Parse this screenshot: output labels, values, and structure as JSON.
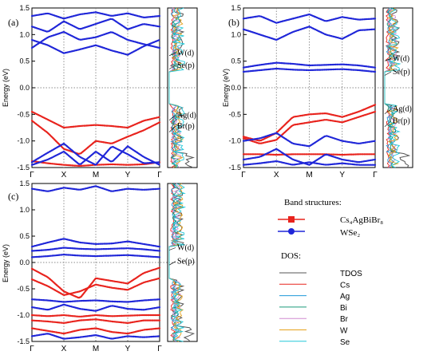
{
  "chart_data": [
    {
      "panel_label": "(a)",
      "type": "line",
      "ylabel": "Energy (eV)",
      "ylim": [
        -1.5,
        1.5
      ],
      "yticks": [
        "1.5",
        "1.0",
        "0.5",
        "0.0",
        "-0.5",
        "-1.0",
        "-1.5"
      ],
      "kpoints": [
        "Γ",
        "X",
        "M",
        "Y",
        "Γ"
      ],
      "series": [
        {
          "name": "Cs4AgBiBr8",
          "color": "#e8231d",
          "bands": [
            [
              -0.45,
              -0.6,
              -0.75,
              -0.72,
              -0.7,
              -0.72,
              -0.75,
              -0.62,
              -0.55
            ],
            [
              -0.62,
              -0.85,
              -1.15,
              -1.25,
              -1.0,
              -1.05,
              -0.92,
              -0.8,
              -0.65
            ],
            [
              -1.38,
              -1.42,
              -1.45,
              -1.47,
              -1.45,
              -1.44,
              -1.45,
              -1.44,
              -1.4
            ]
          ]
        },
        {
          "name": "WSe2",
          "color": "#1f26d8",
          "bands": [
            [
              0.9,
              0.8,
              0.65,
              0.72,
              0.8,
              0.7,
              0.62,
              0.78,
              0.9
            ],
            [
              0.75,
              0.95,
              1.05,
              0.9,
              0.95,
              1.05,
              0.9,
              0.82,
              0.75
            ],
            [
              1.15,
              1.05,
              1.25,
              1.1,
              1.2,
              1.3,
              1.1,
              1.2,
              1.15
            ],
            [
              1.35,
              1.4,
              1.3,
              1.38,
              1.42,
              1.35,
              1.4,
              1.32,
              1.35
            ],
            [
              -1.4,
              -1.22,
              -1.05,
              -1.3,
              -1.45,
              -1.1,
              -1.25,
              -1.42,
              -1.4
            ],
            [
              -1.45,
              -1.35,
              -1.2,
              -1.45,
              -1.2,
              -1.4,
              -1.1,
              -1.3,
              -1.45
            ]
          ]
        }
      ],
      "dos_labels": [
        {
          "text": "W(d)",
          "e": 0.65
        },
        {
          "text": "Se(p)",
          "e": 0.42
        },
        {
          "text": "Ag(d)",
          "e": -0.52
        },
        {
          "text": "Br(p)",
          "e": -0.72
        }
      ]
    },
    {
      "panel_label": "(b)",
      "type": "line",
      "ylabel": "Energy (eV)",
      "ylim": [
        -1.5,
        1.5
      ],
      "yticks": [
        "1.5",
        "1.0",
        "0.5",
        "0.0",
        "-0.5",
        "-1.0",
        "-1.5"
      ],
      "kpoints": [
        "Γ",
        "X",
        "M",
        "Y",
        "Γ"
      ],
      "series": [
        {
          "name": "Cs4AgBiBr8",
          "color": "#e8231d",
          "bands": [
            [
              -0.92,
              -1.0,
              -0.85,
              -0.55,
              -0.5,
              -0.48,
              -0.55,
              -0.45,
              -0.32
            ],
            [
              -0.95,
              -1.05,
              -0.98,
              -0.7,
              -0.65,
              -0.6,
              -0.65,
              -0.55,
              -0.45
            ],
            [
              -1.25,
              -1.25,
              -1.26,
              -1.25,
              -1.25,
              -1.25,
              -1.26,
              -1.25,
              -1.25
            ]
          ]
        },
        {
          "name": "WSe2",
          "color": "#1f26d8",
          "bands": [
            [
              0.38,
              0.43,
              0.47,
              0.45,
              0.42,
              0.43,
              0.44,
              0.42,
              0.38
            ],
            [
              0.3,
              0.33,
              0.36,
              0.34,
              0.33,
              0.34,
              0.35,
              0.33,
              0.3
            ],
            [
              1.1,
              1.0,
              0.9,
              1.05,
              1.15,
              1.0,
              0.92,
              1.08,
              1.1
            ],
            [
              1.3,
              1.35,
              1.22,
              1.3,
              1.38,
              1.25,
              1.33,
              1.28,
              1.3
            ],
            [
              -1.0,
              -0.95,
              -0.85,
              -1.05,
              -1.1,
              -0.9,
              -1.0,
              -1.05,
              -1.0
            ],
            [
              -1.35,
              -1.3,
              -1.15,
              -1.35,
              -1.45,
              -1.25,
              -1.35,
              -1.4,
              -1.35
            ],
            [
              -1.45,
              -1.42,
              -1.38,
              -1.45,
              -1.4,
              -1.45,
              -1.42,
              -1.45,
              -1.45
            ]
          ]
        }
      ],
      "dos_labels": [
        {
          "text": "W(d)",
          "e": 0.55
        },
        {
          "text": "Se(p)",
          "e": 0.3
        },
        {
          "text": "Ag(d)",
          "e": -0.4
        },
        {
          "text": "Br(p)",
          "e": -0.62
        }
      ]
    },
    {
      "panel_label": "(c)",
      "type": "line",
      "ylabel": "Energy (eV)",
      "ylim": [
        -1.5,
        1.5
      ],
      "yticks": [
        "1.5",
        "1.0",
        "0.5",
        "0.0",
        "-0.5",
        "-1.0",
        "-1.5"
      ],
      "kpoints": [
        "Γ",
        "X",
        "M",
        "Y",
        "Γ"
      ],
      "series": [
        {
          "name": "Cs4AgBiBr8",
          "color": "#e8231d",
          "bands": [
            [
              -0.12,
              -0.28,
              -0.55,
              -0.68,
              -0.3,
              -0.35,
              -0.4,
              -0.2,
              -0.1
            ],
            [
              -0.32,
              -0.45,
              -0.62,
              -0.55,
              -0.42,
              -0.48,
              -0.52,
              -0.38,
              -0.3
            ],
            [
              -1.0,
              -1.02,
              -1.0,
              -1.03,
              -1.0,
              -1.02,
              -1.01,
              -1.0,
              -1.0
            ],
            [
              -1.1,
              -1.12,
              -1.15,
              -1.1,
              -1.08,
              -1.12,
              -1.15,
              -1.1,
              -1.1
            ],
            [
              -1.25,
              -1.3,
              -1.35,
              -1.28,
              -1.25,
              -1.32,
              -1.35,
              -1.28,
              -1.25
            ]
          ]
        },
        {
          "name": "WSe2",
          "color": "#1f26d8",
          "bands": [
            [
              0.3,
              0.38,
              0.45,
              0.38,
              0.35,
              0.36,
              0.4,
              0.35,
              0.3
            ],
            [
              0.22,
              0.24,
              0.28,
              0.26,
              0.25,
              0.26,
              0.27,
              0.25,
              0.22
            ],
            [
              0.1,
              0.12,
              0.15,
              0.13,
              0.12,
              0.13,
              0.14,
              0.12,
              0.1
            ],
            [
              1.4,
              1.35,
              1.42,
              1.38,
              1.45,
              1.35,
              1.4,
              1.38,
              1.4
            ],
            [
              -0.7,
              -0.72,
              -0.75,
              -0.73,
              -0.72,
              -0.74,
              -0.75,
              -0.72,
              -0.7
            ],
            [
              -0.85,
              -0.9,
              -0.8,
              -0.88,
              -0.92,
              -0.82,
              -0.88,
              -0.9,
              -0.85
            ],
            [
              -1.4,
              -1.35,
              -1.45,
              -1.42,
              -1.38,
              -1.45,
              -1.4,
              -1.42,
              -1.4
            ]
          ]
        }
      ],
      "dos_labels": [
        {
          "text": "W(d)",
          "e": 0.28
        },
        {
          "text": "Se(p)",
          "e": 0.02
        }
      ]
    }
  ],
  "legend": {
    "band_title": "Band structures:",
    "band_items": [
      {
        "label": "Cs₄AgBiBr₈",
        "color": "#e8231d",
        "marker": "square"
      },
      {
        "label": "WSe₂",
        "color": "#1f26d8",
        "marker": "circle"
      }
    ],
    "dos_title": "DOS:",
    "dos_items": [
      {
        "label": "TDOS",
        "color": "#555555"
      },
      {
        "label": "Cs",
        "color": "#e8231d"
      },
      {
        "label": "Ag",
        "color": "#1f9ad8"
      },
      {
        "label": "Bi",
        "color": "#1a9a7a"
      },
      {
        "label": "Br",
        "color": "#d08cd0"
      },
      {
        "label": "W",
        "color": "#e6a21a"
      },
      {
        "label": "Se",
        "color": "#22c8d8"
      }
    ]
  }
}
